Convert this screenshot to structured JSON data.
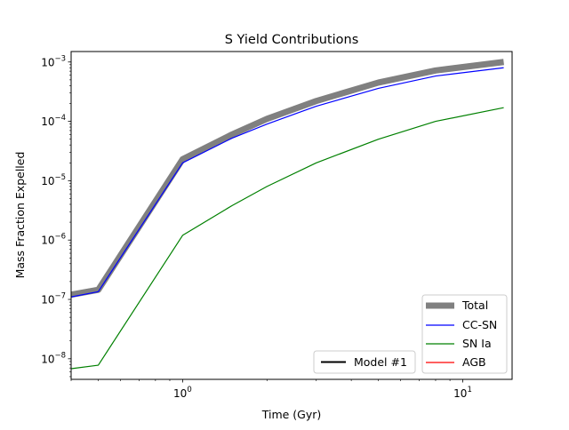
{
  "chart_data": {
    "type": "line",
    "title": "S Yield Contributions",
    "xlabel": "Time (Gyr)",
    "ylabel": "Mass Fraction Expelled",
    "xscale": "log",
    "yscale": "log",
    "xlim": [
      0.4,
      15
    ],
    "ylim": [
      4.5e-09,
      0.0015
    ],
    "x_ticks": [
      {
        "value": 1,
        "base": "10",
        "exp": "0"
      },
      {
        "value": 10,
        "base": "10",
        "exp": "1"
      }
    ],
    "y_ticks": [
      {
        "value": 1e-08,
        "base": "10",
        "exp": "−8"
      },
      {
        "value": 1e-07,
        "base": "10",
        "exp": "−7"
      },
      {
        "value": 1e-06,
        "base": "10",
        "exp": "−6"
      },
      {
        "value": 1e-05,
        "base": "10",
        "exp": "−5"
      },
      {
        "value": 0.0001,
        "base": "10",
        "exp": "−4"
      },
      {
        "value": 0.001,
        "base": "10",
        "exp": "−3"
      }
    ],
    "grid": false,
    "series": [
      {
        "name": "Total",
        "color": "#808080",
        "x": [
          0.4,
          0.5,
          1.0,
          1.5,
          2.0,
          3.0,
          5.0,
          8.0,
          14.0
        ],
        "y": [
          1.2e-07,
          1.45e-07,
          2.3e-05,
          6e-05,
          0.00011,
          0.00022,
          0.00045,
          0.00072,
          0.001
        ]
      },
      {
        "name": "CC-SN",
        "color": "#0000ff",
        "x": [
          0.4,
          0.5,
          1.0,
          1.5,
          2.0,
          3.0,
          5.0,
          8.0,
          14.0
        ],
        "y": [
          1.1e-07,
          1.35e-07,
          2e-05,
          5.2e-05,
          9e-05,
          0.00018,
          0.00036,
          0.00058,
          0.0008
        ]
      },
      {
        "name": "SN Ia",
        "color": "#008000",
        "x": [
          0.4,
          0.5,
          1.0,
          1.5,
          2.0,
          3.0,
          5.0,
          8.0,
          14.0
        ],
        "y": [
          6.8e-09,
          7.8e-09,
          1.2e-06,
          3.8e-06,
          8e-06,
          2e-05,
          5e-05,
          0.0001,
          0.00017
        ]
      },
      {
        "name": "AGB",
        "color": "#ff0000",
        "x": [],
        "y": []
      }
    ],
    "legend_main": {
      "placement": "lower-right",
      "entries": [
        "Total",
        "CC-SN",
        "SN Ia",
        "AGB"
      ]
    },
    "legend_model": {
      "placement": "lower-center",
      "entries": [
        {
          "label": "Model #1",
          "color": "#000000"
        }
      ]
    }
  }
}
